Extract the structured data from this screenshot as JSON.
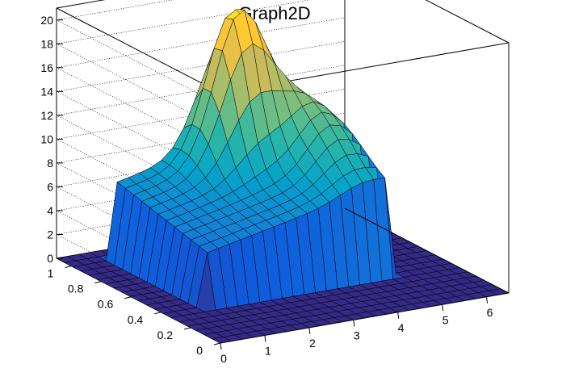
{
  "chart_data": {
    "type": "surface",
    "title": "Graph2D",
    "xlabel": "",
    "ylabel": "",
    "zlabel": "",
    "xlim": [
      0,
      6.5
    ],
    "ylim": [
      0,
      1.1
    ],
    "zlim": [
      0,
      21
    ],
    "x_ticks": [
      "0",
      "1",
      "2",
      "3",
      "4",
      "5",
      "6"
    ],
    "y_ticks": [
      "0",
      "0.2",
      "0.4",
      "0.6",
      "0.8",
      "1"
    ],
    "z_ticks": [
      "0",
      "2",
      "4",
      "6",
      "8",
      "10",
      "12",
      "14",
      "16",
      "18",
      "20"
    ],
    "grid": true,
    "colormap": [
      "#352a87",
      "#0f5cdd",
      "#1481d6",
      "#06a4ca",
      "#2eb7a4",
      "#87bf77",
      "#d1bb59",
      "#fec832",
      "#f9fb0e"
    ],
    "surface": {
      "description_points": [
        {
          "x": 1.0,
          "y": 0.0,
          "z": 0
        },
        {
          "x": 1.0,
          "y": 1.0,
          "z": 6
        },
        {
          "x": 2.0,
          "y": 1.0,
          "z": 8
        },
        {
          "x": 3.0,
          "y": 0.95,
          "z": 12
        },
        {
          "x": 3.3,
          "y": 0.9,
          "z": 20
        },
        {
          "x": 3.8,
          "y": 0.85,
          "z": 20
        },
        {
          "x": 4.5,
          "y": 0.8,
          "z": 14
        },
        {
          "x": 5.0,
          "y": 0.55,
          "z": 12
        },
        {
          "x": 5.1,
          "y": 0.4,
          "z": 0
        },
        {
          "x": 3.0,
          "y": 0.4,
          "z": 7
        },
        {
          "x": 2.0,
          "y": 0.3,
          "z": 4
        },
        {
          "x": 6.5,
          "y": 0.0,
          "z": 0
        }
      ]
    }
  }
}
